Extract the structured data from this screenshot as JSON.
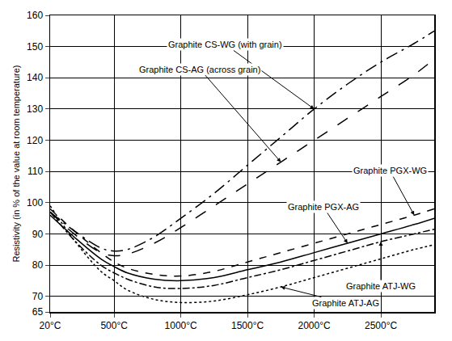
{
  "chart_data": {
    "type": "line",
    "y_label": "Resistivity (in % of the value at room temperature)",
    "x": [
      20,
      200,
      400,
      500,
      600,
      800,
      1000,
      1250,
      1500,
      1750,
      2000,
      2250,
      2500,
      2750,
      2900
    ],
    "series": [
      {
        "name": "Graphite CS-WG (with grain)",
        "color": "#000000",
        "line_style": "longdashdot",
        "values": [
          97,
          91,
          85.5,
          84.5,
          85,
          89,
          95,
          103,
          112,
          121,
          130,
          138,
          145,
          151,
          155
        ]
      },
      {
        "name": "Graphite CS-AG (across grain)",
        "color": "#000000",
        "line_style": "longdash",
        "values": [
          97,
          90,
          84,
          83,
          83.5,
          87,
          92,
          99,
          106,
          113,
          120,
          127,
          134,
          141,
          146
        ]
      },
      {
        "name": "Graphite PGX-WG",
        "color": "#000000",
        "line_style": "dash",
        "values": [
          98,
          91,
          84,
          81,
          79,
          77,
          76.5,
          78,
          81,
          84,
          87,
          90,
          93,
          96,
          98
        ]
      },
      {
        "name": "Graphite PGX-AG",
        "color": "#000000",
        "line_style": "solid",
        "values": [
          96,
          89,
          82,
          79.5,
          77.5,
          75.5,
          75,
          76,
          78.5,
          81,
          84,
          87,
          90,
          93,
          95
        ]
      },
      {
        "name": "Graphite ATJ-WG",
        "color": "#000000",
        "line_style": "dashdot",
        "values": [
          97,
          88,
          80,
          77.5,
          75.5,
          73,
          72.5,
          73.5,
          76,
          78.5,
          81.5,
          84.5,
          87.5,
          90,
          91.5
        ]
      },
      {
        "name": "Graphite ATJ-AG",
        "color": "#000000",
        "line_style": "dot",
        "values": [
          99,
          88,
          78,
          75,
          72,
          69,
          68,
          68.5,
          70.5,
          73,
          76,
          79,
          82,
          85,
          86.5
        ]
      }
    ],
    "xlim": [
      20,
      2900
    ],
    "xticks": [
      {
        "value": 20,
        "label": "20°C"
      },
      {
        "value": 500,
        "label": "500°C"
      },
      {
        "value": 1000,
        "label": "1000°C"
      },
      {
        "value": 1500,
        "label": "1500°C"
      },
      {
        "value": 2000,
        "label": "2000°C"
      },
      {
        "value": 2500,
        "label": "2500°C"
      }
    ],
    "ylim": [
      65,
      160
    ],
    "yticks": [
      65,
      70,
      80,
      90,
      100,
      110,
      120,
      130,
      140,
      150,
      160
    ],
    "grid": true
  }
}
